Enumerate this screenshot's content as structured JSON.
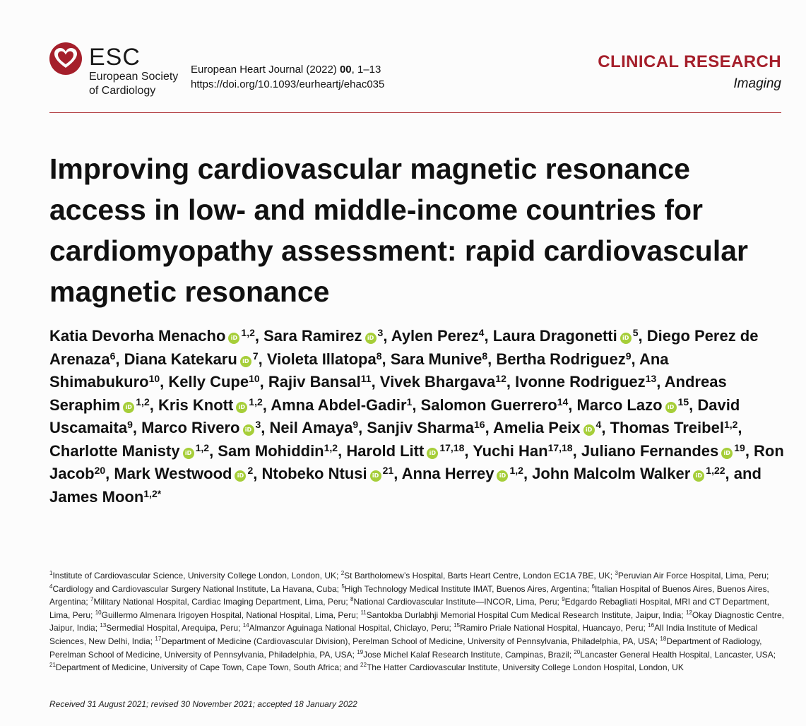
{
  "header": {
    "esc_abbrev": "ESC",
    "esc_name_line1": "European Society",
    "esc_name_line2": "of Cardiology",
    "journal_prefix": "European Heart Journal (2022)",
    "journal_volume": "00",
    "journal_pages": ", 1–13",
    "doi": "https://doi.org/10.1093/eurheartj/ehac035",
    "category": "CLINICAL RESEARCH",
    "subcategory": "Imaging",
    "logo_icon": "esc-heart-logo-icon",
    "brand_color": "#a51f2b"
  },
  "title": "Improving cardiovascular magnetic resonance access in low- and middle-income countries for cardiomyopathy assessment: rapid cardiovascular magnetic resonance",
  "orcid_icon_text": "iD",
  "orcid_color": "#a6ce39",
  "authors": [
    {
      "name": "Katia Devorha Menacho",
      "orcid": true,
      "aff": "1,2",
      "sep": ", "
    },
    {
      "name": "Sara Ramirez",
      "orcid": true,
      "aff": "3",
      "sep": ", "
    },
    {
      "name": "Aylen Perez",
      "orcid": false,
      "aff": "4",
      "sep": ", "
    },
    {
      "name": "Laura Dragonetti",
      "orcid": true,
      "aff": "5",
      "sep": ", "
    },
    {
      "name": "Diego Perez de Arenaza",
      "orcid": false,
      "aff": "6",
      "sep": ", "
    },
    {
      "name": "Diana Katekaru",
      "orcid": true,
      "aff": "7",
      "sep": ", "
    },
    {
      "name": "Violeta Illatopa",
      "orcid": false,
      "aff": "8",
      "sep": ", "
    },
    {
      "name": "Sara Munive",
      "orcid": false,
      "aff": "8",
      "sep": ", "
    },
    {
      "name": "Bertha Rodriguez",
      "orcid": false,
      "aff": "9",
      "sep": ", "
    },
    {
      "name": "Ana Shimabukuro",
      "orcid": false,
      "aff": "10",
      "sep": ", "
    },
    {
      "name": "Kelly Cupe",
      "orcid": false,
      "aff": "10",
      "sep": ", "
    },
    {
      "name": "Rajiv Bansal",
      "orcid": false,
      "aff": "11",
      "sep": ", "
    },
    {
      "name": "Vivek Bhargava",
      "orcid": false,
      "aff": "12",
      "sep": ", "
    },
    {
      "name": "Ivonne Rodriguez",
      "orcid": false,
      "aff": "13",
      "sep": ", "
    },
    {
      "name": "Andreas Seraphim",
      "orcid": true,
      "aff": "1,2",
      "sep": ", "
    },
    {
      "name": "Kris Knott",
      "orcid": true,
      "aff": "1,2",
      "sep": ", "
    },
    {
      "name": "Amna Abdel-Gadir",
      "orcid": false,
      "aff": "1",
      "sep": ", "
    },
    {
      "name": "Salomon Guerrero",
      "orcid": false,
      "aff": "14",
      "sep": ", "
    },
    {
      "name": "Marco Lazo",
      "orcid": true,
      "aff": "15",
      "sep": ", "
    },
    {
      "name": "David Uscamaita",
      "orcid": false,
      "aff": "9",
      "sep": ", "
    },
    {
      "name": "Marco Rivero",
      "orcid": true,
      "aff": "3",
      "sep": ", "
    },
    {
      "name": "Neil Amaya",
      "orcid": false,
      "aff": "9",
      "sep": ", "
    },
    {
      "name": "Sanjiv Sharma",
      "orcid": false,
      "aff": "16",
      "sep": ", "
    },
    {
      "name": "Amelia Peix",
      "orcid": true,
      "aff": "4",
      "sep": ", "
    },
    {
      "name": "Thomas Treibel",
      "orcid": false,
      "aff": "1,2",
      "sep": ", "
    },
    {
      "name": "Charlotte Manisty",
      "orcid": true,
      "aff": "1,2",
      "sep": ", "
    },
    {
      "name": "Sam Mohiddin",
      "orcid": false,
      "aff": "1,2",
      "sep": ", "
    },
    {
      "name": "Harold Litt",
      "orcid": true,
      "aff": "17,18",
      "sep": ", "
    },
    {
      "name": "Yuchi Han",
      "orcid": false,
      "aff": "17,18",
      "sep": ", "
    },
    {
      "name": "Juliano Fernandes",
      "orcid": true,
      "aff": "19",
      "sep": ", "
    },
    {
      "name": "Ron Jacob",
      "orcid": false,
      "aff": "20",
      "sep": ", "
    },
    {
      "name": "Mark Westwood",
      "orcid": true,
      "aff": "2",
      "sep": ", "
    },
    {
      "name": "Ntobeko Ntusi",
      "orcid": true,
      "aff": "21",
      "sep": ", "
    },
    {
      "name": "Anna Herrey",
      "orcid": true,
      "aff": "1,2",
      "sep": ", "
    },
    {
      "name": "John Malcolm Walker",
      "orcid": true,
      "aff": "1,22",
      "sep": ", and "
    },
    {
      "name": "James Moon",
      "orcid": false,
      "aff": "1,2*",
      "sep": ""
    }
  ],
  "affiliations": [
    {
      "n": "1",
      "text": "Institute of Cardiovascular Science, University College London, London, UK; "
    },
    {
      "n": "2",
      "text": "St Bartholomew’s Hospital, Barts Heart Centre, London EC1A 7BE, UK; "
    },
    {
      "n": "3",
      "text": "Peruvian Air Force Hospital, Lima, Peru; "
    },
    {
      "n": "4",
      "text": "Cardiology and Cardiovascular Surgery National Institute, La Havana, Cuba; "
    },
    {
      "n": "5",
      "text": "High Technology Medical Institute IMAT, Buenos Aires, Argentina; "
    },
    {
      "n": "6",
      "text": "Italian Hospital of Buenos Aires, Buenos Aires, Argentina; "
    },
    {
      "n": "7",
      "text": "Military National Hospital, Cardiac Imaging Department, Lima, Peru; "
    },
    {
      "n": "8",
      "text": "National Cardiovascular Institute—INCOR, Lima, Peru; "
    },
    {
      "n": "9",
      "text": "Edgardo Rebagliati Hospital, MRI and CT Department, Lima, Peru; "
    },
    {
      "n": "10",
      "text": "Guillermo Almenara Irigoyen Hospital, National Hospital, Lima, Peru; "
    },
    {
      "n": "11",
      "text": "Santokba Durlabhji Memorial Hospital Cum Medical Research Institute, Jaipur, India; "
    },
    {
      "n": "12",
      "text": "Okay Diagnostic Centre, Jaipur, India; "
    },
    {
      "n": "13",
      "text": "Sermedial Hospital, Arequipa, Peru; "
    },
    {
      "n": "14",
      "text": "Almanzor Aguinaga National Hospital, Chiclayo, Peru; "
    },
    {
      "n": "15",
      "text": "Ramiro Priale National Hospital, Huancayo, Peru; "
    },
    {
      "n": "16",
      "text": "All India Institute of Medical Sciences, New Delhi, India; "
    },
    {
      "n": "17",
      "text": "Department of Medicine (Cardiovascular Division), Perelman School of Medicine, University of Pennsylvania, Philadelphia, PA, USA; "
    },
    {
      "n": "18",
      "text": "Department of Radiology, Perelman School of Medicine, University of Pennsylvania, Philadelphia, PA, USA; "
    },
    {
      "n": "19",
      "text": "Jose Michel Kalaf Research Institute, Campinas, Brazil; "
    },
    {
      "n": "20",
      "text": "Lancaster General Health Hospital, Lancaster, USA; "
    },
    {
      "n": "21",
      "text": "Department of Medicine, University of Cape Town, Cape Town, South Africa; and "
    },
    {
      "n": "22",
      "text": "The Hatter Cardiovascular Institute, University College London Hospital, London, UK"
    }
  ],
  "received": "Received 31 August 2021; revised 30 November 2021; accepted 18 January 2022"
}
